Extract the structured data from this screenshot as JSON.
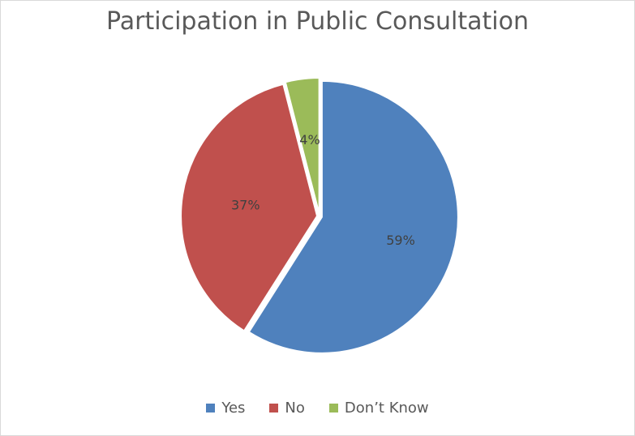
{
  "chart_data": {
    "type": "pie",
    "title": "Participation in Public Consultation",
    "categories": [
      "Yes",
      "No",
      "Don’t Know"
    ],
    "values": [
      59,
      37,
      4
    ],
    "data_labels": [
      "59%",
      "37%",
      "4%"
    ],
    "colors": [
      "#4f81bd",
      "#c0504d",
      "#9bbb59"
    ],
    "legend_position": "bottom"
  }
}
